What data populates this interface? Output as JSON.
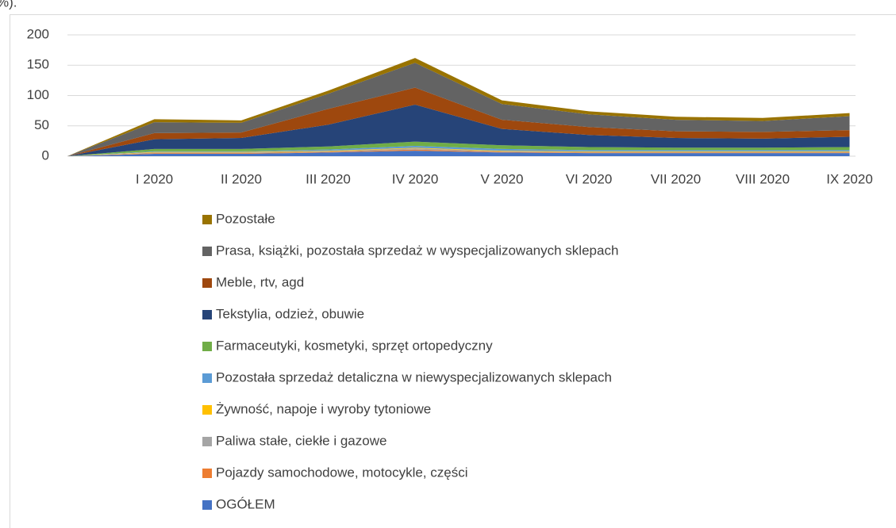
{
  "chart_data": {
    "type": "stacked_area",
    "title": "%).",
    "categories": [
      null,
      "I 2020",
      "II 2020",
      "III 2020",
      "IV 2020",
      "V 2020",
      "VI 2020",
      "VII 2020",
      "VIII 2020",
      "IX 2020"
    ],
    "ylim": [
      0,
      200
    ],
    "yticks": [
      0,
      50,
      100,
      150,
      200
    ],
    "grid": true,
    "legend": "bottom",
    "series": [
      {
        "name": "OGÓŁEM",
        "color": "#4472c4",
        "values": [
          0,
          4,
          4,
          6,
          9,
          6,
          5,
          5,
          5,
          5
        ]
      },
      {
        "name": "Pojazdy samochodowe, motocykle, części",
        "color": "#ed7d31",
        "values": [
          0,
          1,
          1,
          1,
          2,
          1,
          1,
          1,
          1,
          1
        ]
      },
      {
        "name": "Paliwa stałe, ciekłe i gazowe",
        "color": "#a5a5a5",
        "values": [
          0,
          1,
          1,
          1,
          2,
          1,
          1,
          1,
          1,
          1
        ]
      },
      {
        "name": "Żywność, napoje i wyroby tytoniowe",
        "color": "#ffc000",
        "values": [
          0,
          1,
          1,
          1,
          1,
          1,
          1,
          1,
          1,
          1
        ]
      },
      {
        "name": "Pozostała sprzedaż detaliczna w niewyspecjalizowanych sklepach",
        "color": "#5b9bd5",
        "values": [
          0,
          1,
          1,
          2,
          3,
          3,
          2,
          2,
          2,
          2
        ]
      },
      {
        "name": "Farmaceutyki, kosmetyki, sprzęt ortopedyczny",
        "color": "#70ad47",
        "values": [
          0,
          4,
          4,
          5,
          7,
          6,
          5,
          4,
          4,
          5
        ]
      },
      {
        "name": "Tekstylia, odzież, obuwie",
        "color": "#264478",
        "values": [
          0,
          16,
          18,
          36,
          61,
          27,
          20,
          16,
          15,
          17
        ]
      },
      {
        "name": "Meble, rtv, agd",
        "color": "#9e480e",
        "values": [
          0,
          10,
          9,
          26,
          28,
          15,
          13,
          11,
          11,
          11
        ]
      },
      {
        "name": "Prasa, książki, pozostała sprzedaż w wyspecjalizowanych sklepach",
        "color": "#636363",
        "values": [
          0,
          18,
          16,
          25,
          41,
          26,
          21,
          19,
          18,
          23
        ]
      },
      {
        "name": "Pozostałe",
        "color": "#997300",
        "values": [
          0,
          5,
          4,
          5,
          8,
          6,
          5,
          5,
          5,
          5
        ]
      }
    ]
  }
}
